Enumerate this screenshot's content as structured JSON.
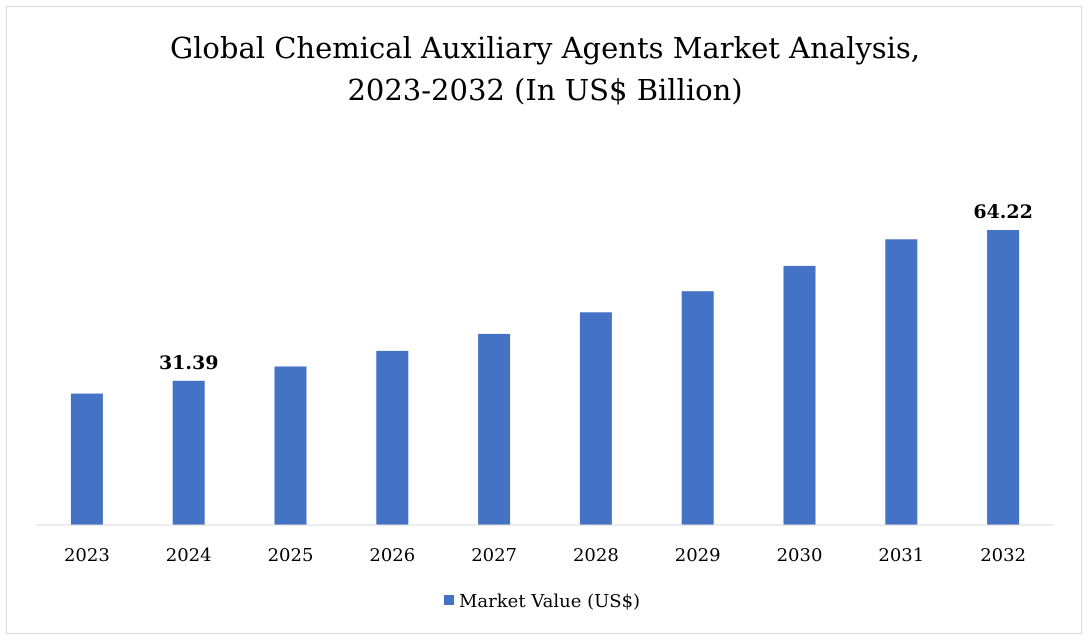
{
  "chart_data": {
    "type": "bar",
    "title_lines": [
      "Global Chemical Auxiliary Agents Market Analysis,",
      "2023-2032 (In US$ Billion)"
    ],
    "categories": [
      "2023",
      "2024",
      "2025",
      "2026",
      "2027",
      "2028",
      "2029",
      "2030",
      "2031",
      "2032"
    ],
    "series": [
      {
        "name": "Market Value (US$)",
        "values": [
          28.6,
          31.39,
          34.5,
          37.9,
          41.6,
          46.3,
          50.9,
          56.4,
          62.2,
          64.22
        ],
        "color": "#4472c4"
      }
    ],
    "data_labels": [
      {
        "index": 1,
        "text": "31.39"
      },
      {
        "index": 9,
        "text": "64.22"
      }
    ],
    "ylim": [
      0,
      70
    ],
    "grid": false,
    "legend_position": "bottom",
    "axis_color": "#d9d9d9"
  }
}
